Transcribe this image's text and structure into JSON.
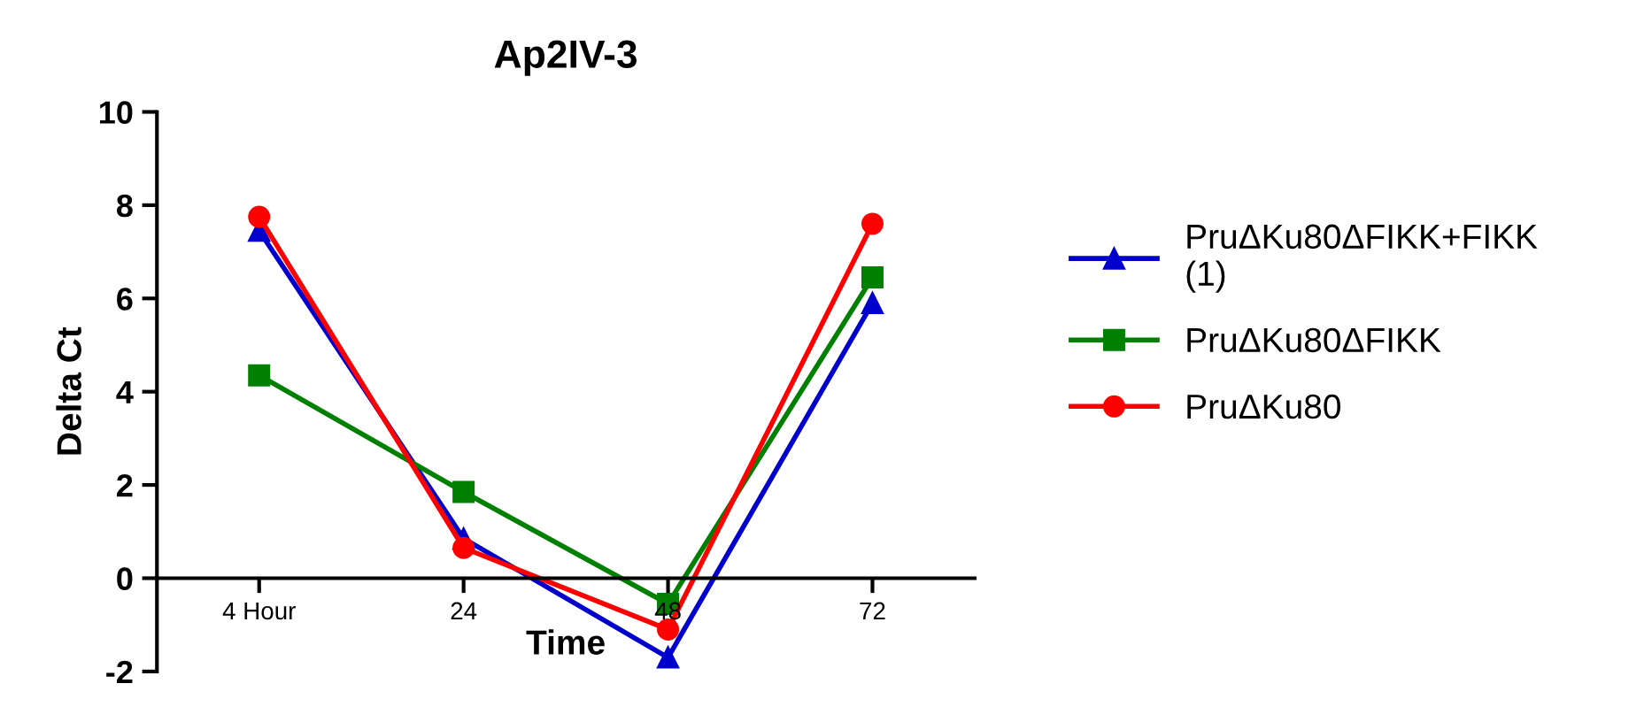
{
  "chart_data": {
    "type": "line",
    "title": "Ap2IV-3",
    "xlabel": "Time",
    "ylabel": "Delta Ct",
    "categories": [
      "4 Hour",
      "24",
      "48",
      "72"
    ],
    "series": [
      {
        "name": "PruΔKu80ΔFIKK+FIKK\n(1)",
        "color": "#0000cc",
        "marker": "triangle",
        "values": [
          7.45,
          0.85,
          -1.7,
          5.9
        ]
      },
      {
        "name": "PruΔKu80ΔFIKK",
        "color": "#008000",
        "marker": "square",
        "values": [
          4.35,
          1.85,
          -0.55,
          6.45
        ]
      },
      {
        "name": "PruΔKu80",
        "color": "#ff0000",
        "marker": "circle",
        "values": [
          7.75,
          0.65,
          -1.1,
          7.6
        ]
      }
    ],
    "ylim": [
      -2,
      10
    ],
    "yticks": [
      -2,
      0,
      2,
      4,
      6,
      8,
      10
    ],
    "grid": false,
    "legend": "right",
    "line_style": "solid"
  }
}
